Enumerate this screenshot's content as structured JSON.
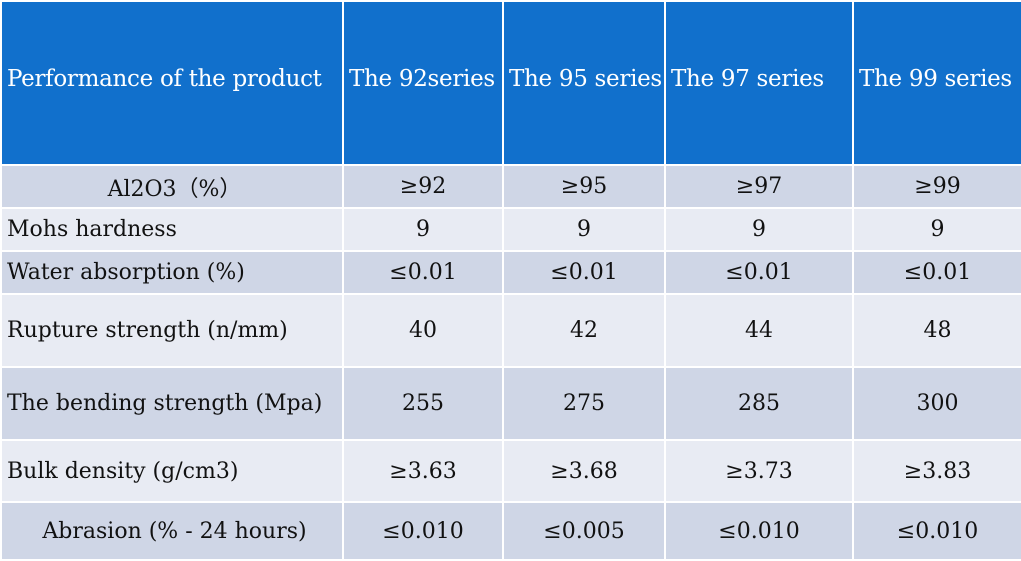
{
  "table": {
    "headers": [
      "Performance of the product",
      "The 92series",
      "The 95 series",
      "The 97 series",
      "The 99 series"
    ],
    "rows": [
      {
        "label": "Al2O3（%）",
        "values": [
          "≥92",
          "≥95",
          "≥97",
          "≥99"
        ]
      },
      {
        "label": "Mohs hardness",
        "values": [
          "9",
          "9",
          "9",
          "9"
        ]
      },
      {
        "label": "Water absorption (%)",
        "values": [
          "≤0.01",
          "≤0.01",
          "≤0.01",
          "≤0.01"
        ]
      },
      {
        "label": "Rupture strength (n/mm)",
        "values": [
          "40",
          "42",
          "44",
          "48"
        ]
      },
      {
        "label": "The bending strength (Mpa)",
        "values": [
          "255",
          "275",
          "285",
          "300"
        ]
      },
      {
        "label": "Bulk density (g/cm3)",
        "values": [
          "≥3.63",
          "≥3.68",
          "≥3.73",
          "≥3.83"
        ]
      },
      {
        "label": "Abrasion (% - 24 hours)",
        "values": [
          "≤0.010",
          "≤0.005",
          "≤0.010",
          "≤0.010"
        ]
      }
    ]
  },
  "colors": {
    "header_bg": "#1170cc",
    "row_dark": "#cfd6e6",
    "row_light": "#e8ebf3"
  }
}
